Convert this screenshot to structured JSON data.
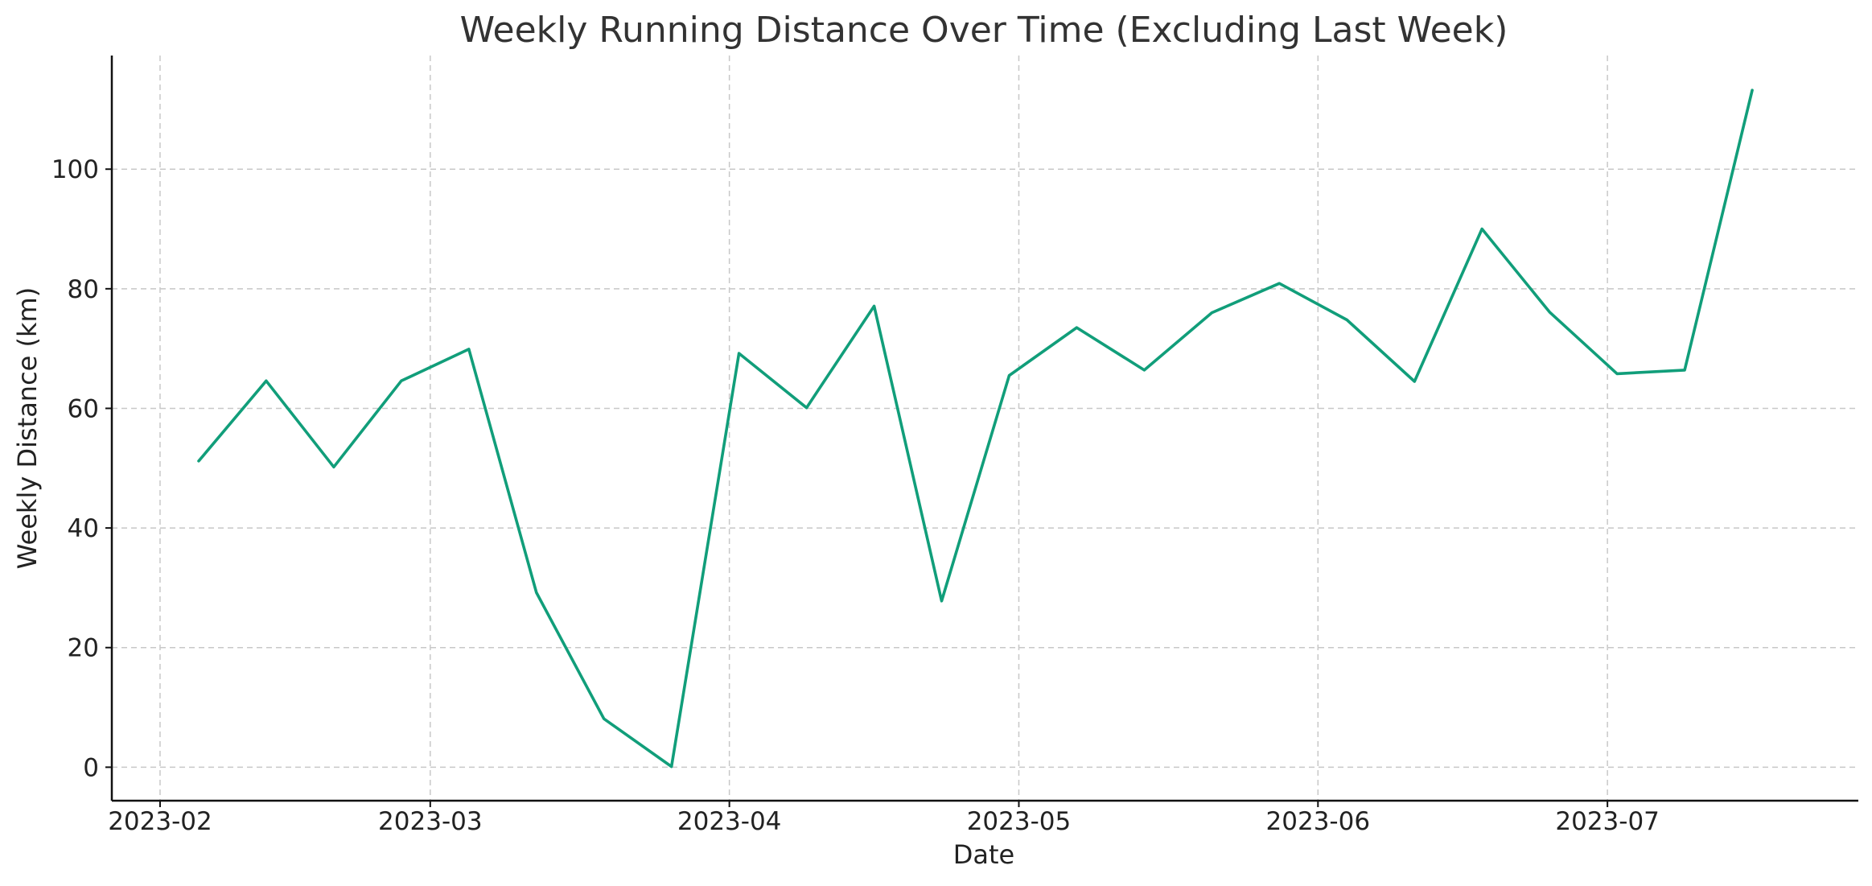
{
  "chart_data": {
    "type": "line",
    "title": "Weekly Running Distance Over Time (Excluding Last Week)",
    "xlabel": "Date",
    "ylabel": "Weekly Distance (km)",
    "x_axis_type": "date",
    "x_ticks": [
      "2023-02-01",
      "2023-03-01",
      "2023-04-01",
      "2023-05-01",
      "2023-06-01",
      "2023-07-01"
    ],
    "x_tick_labels": [
      "2023-02",
      "2023-03",
      "2023-04",
      "2023-05",
      "2023-06",
      "2023-07"
    ],
    "xlim": [
      "2023-01-27",
      "2023-07-27"
    ],
    "y_ticks": [
      0,
      20,
      40,
      60,
      80,
      100
    ],
    "ylim": [
      -5.6,
      119
    ],
    "grid": true,
    "colors": {
      "line": "#119e7a"
    },
    "series": [
      {
        "x": [
          "2023-02-05",
          "2023-02-12",
          "2023-02-19",
          "2023-02-26",
          "2023-03-05",
          "2023-03-12",
          "2023-03-19",
          "2023-03-26",
          "2023-04-02",
          "2023-04-09",
          "2023-04-16",
          "2023-04-23",
          "2023-04-30",
          "2023-05-07",
          "2023-05-14",
          "2023-05-21",
          "2023-05-28",
          "2023-06-04",
          "2023-06-11",
          "2023-06-18",
          "2023-06-25",
          "2023-07-02",
          "2023-07-09",
          "2023-07-16"
        ],
        "y": [
          51.2,
          64.6,
          50.2,
          64.6,
          69.9,
          29.2,
          8.1,
          0.1,
          69.2,
          60.1,
          77.1,
          27.8,
          65.5,
          73.5,
          66.4,
          76.0,
          80.9,
          74.8,
          64.5,
          90.0,
          76.1,
          65.8,
          66.4,
          113.2
        ]
      }
    ]
  }
}
